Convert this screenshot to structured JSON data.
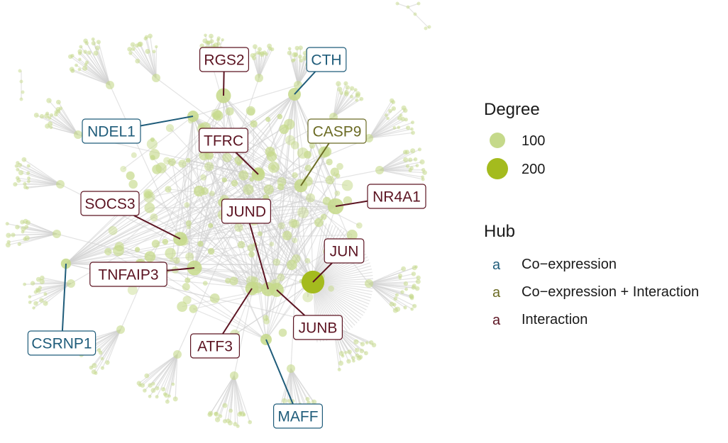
{
  "colors": {
    "co_expression": "#1f5c7a",
    "co_expression_interaction": "#6b6b24",
    "interaction": "#5c1422",
    "node_fill": "#c5d98a",
    "hub_large": "#a4bb1e",
    "edge": "#d0d0d0"
  },
  "legend": {
    "degree_title": "Degree",
    "degree_items": [
      {
        "label": "100",
        "degree": 100
      },
      {
        "label": "200",
        "degree": 200
      }
    ],
    "hub_title": "Hub",
    "hub_key_glyph": "a",
    "hub_items": [
      {
        "label": "Co−expression",
        "type": "co_expression"
      },
      {
        "label": "Co−expression + Interaction",
        "type": "co_expression_interaction"
      },
      {
        "label": "Interaction",
        "type": "interaction"
      }
    ]
  },
  "hubs": [
    {
      "label": "RGS2",
      "type": "interaction",
      "degree": 80
    },
    {
      "label": "CTH",
      "type": "co_expression",
      "degree": 55
    },
    {
      "label": "NDEL1",
      "type": "co_expression",
      "degree": 40
    },
    {
      "label": "TFRC",
      "type": "interaction",
      "degree": 60
    },
    {
      "label": "CASP9",
      "type": "co_expression_interaction",
      "degree": 60
    },
    {
      "label": "NR4A1",
      "type": "interaction",
      "degree": 95
    },
    {
      "label": "SOCS3",
      "type": "interaction",
      "degree": 70
    },
    {
      "label": "JUND",
      "type": "interaction",
      "degree": 70
    },
    {
      "label": "JUN",
      "type": "interaction",
      "degree": 220
    },
    {
      "label": "TNFAIP3",
      "type": "interaction",
      "degree": 80
    },
    {
      "label": "CSRNP1",
      "type": "co_expression",
      "degree": 30
    },
    {
      "label": "ATF3",
      "type": "interaction",
      "degree": 60
    },
    {
      "label": "JUNB",
      "type": "interaction",
      "degree": 70
    },
    {
      "label": "MAFF",
      "type": "co_expression",
      "degree": 40
    }
  ]
}
